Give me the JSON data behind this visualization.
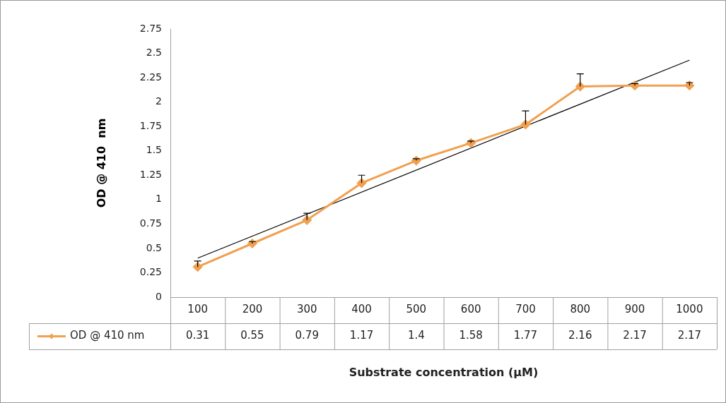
{
  "chart_data": {
    "type": "line",
    "xlabel": "Substrate concentration (µM)",
    "ylabel": "OD @ 410  nm",
    "categories": [
      "100",
      "200",
      "300",
      "400",
      "500",
      "600",
      "700",
      "800",
      "900",
      "1000"
    ],
    "series": [
      {
        "name": "OD @ 410 nm",
        "color": "#f0a050",
        "values": [
          0.31,
          0.55,
          0.79,
          1.17,
          1.4,
          1.58,
          1.77,
          2.16,
          2.17,
          2.17
        ],
        "value_labels": [
          "0.31",
          "0.55",
          "0.79",
          "1.17",
          "1.4",
          "1.58",
          "1.77",
          "2.16",
          "2.17",
          "2.17"
        ],
        "errors": [
          [
            0.31,
            0.37
          ],
          [
            0.55,
            0.57
          ],
          [
            0.79,
            0.86
          ],
          [
            1.17,
            1.25
          ],
          [
            1.4,
            1.42
          ],
          [
            1.58,
            1.6
          ],
          [
            1.77,
            1.91
          ],
          [
            2.16,
            2.29
          ],
          [
            2.17,
            2.19
          ],
          [
            2.17,
            2.2
          ]
        ],
        "marker": "diamond"
      },
      {
        "type": "line",
        "color": "#000000",
        "values": [
          0.4,
          null,
          null,
          null,
          null,
          null,
          null,
          null,
          null,
          2.43
        ],
        "marker": "none"
      }
    ],
    "ylim": [
      0,
      2.75
    ],
    "yticks": [
      0,
      0.25,
      0.5,
      0.75,
      1,
      1.25,
      1.5,
      1.75,
      2,
      2.25,
      2.5,
      2.75
    ],
    "grid": false,
    "legend": "bottom"
  }
}
